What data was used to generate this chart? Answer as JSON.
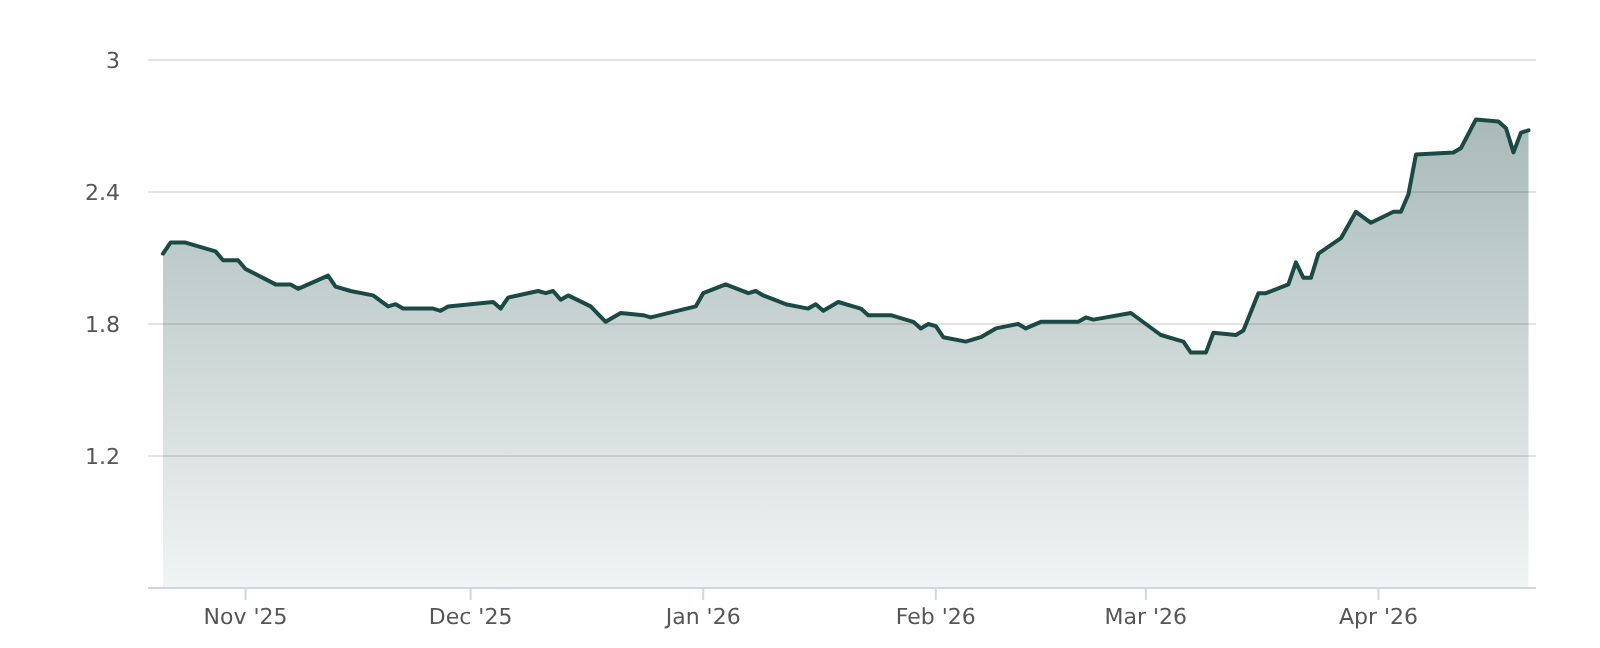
{
  "chart_data": {
    "type": "area",
    "xlim": [
      "2025-10-19",
      "2026-04-22"
    ],
    "ylim": [
      0.6,
      3
    ],
    "xticks": [
      {
        "value": "2025-11-01",
        "label": "Nov '25"
      },
      {
        "value": "2025-12-01",
        "label": "Dec '25"
      },
      {
        "value": "2026-01-01",
        "label": "Jan '26"
      },
      {
        "value": "2026-02-01",
        "label": "Feb '26"
      },
      {
        "value": "2026-03-01",
        "label": "Mar '26"
      },
      {
        "value": "2026-04-01",
        "label": "Apr '26"
      }
    ],
    "yticks": [
      1.2,
      1.8,
      2.4,
      3
    ],
    "grid": "y",
    "series": [
      {
        "color": "#1b4a45",
        "x": [
          "2025-10-21",
          "2025-10-22",
          "2025-10-24",
          "2025-10-28",
          "2025-10-29",
          "2025-10-31",
          "2025-11-01",
          "2025-11-05",
          "2025-11-07",
          "2025-11-08",
          "2025-11-12",
          "2025-11-13",
          "2025-11-15",
          "2025-11-18",
          "2025-11-20",
          "2025-11-21",
          "2025-11-22",
          "2025-11-26",
          "2025-11-27",
          "2025-11-28",
          "2025-12-04",
          "2025-12-05",
          "2025-12-06",
          "2025-12-10",
          "2025-12-11",
          "2025-12-12",
          "2025-12-13",
          "2025-12-14",
          "2025-12-17",
          "2025-12-19",
          "2025-12-21",
          "2025-12-24",
          "2025-12-25",
          "2025-12-31",
          "2026-01-01",
          "2026-01-04",
          "2026-01-07",
          "2026-01-08",
          "2026-01-09",
          "2026-01-12",
          "2026-01-15",
          "2026-01-16",
          "2026-01-17",
          "2026-01-19",
          "2026-01-22",
          "2026-01-23",
          "2026-01-26",
          "2026-01-29",
          "2026-01-30",
          "2026-01-31",
          "2026-02-01",
          "2026-02-02",
          "2026-02-05",
          "2026-02-07",
          "2026-02-09",
          "2026-02-12",
          "2026-02-13",
          "2026-02-15",
          "2026-02-20",
          "2026-02-21",
          "2026-02-22",
          "2026-02-27",
          "2026-03-03",
          "2026-03-06",
          "2026-03-07",
          "2026-03-09",
          "2026-03-10",
          "2026-03-13",
          "2026-03-14",
          "2026-03-16",
          "2026-03-17",
          "2026-03-20",
          "2026-03-21",
          "2026-03-22",
          "2026-03-23",
          "2026-03-24",
          "2026-03-27",
          "2026-03-29",
          "2026-03-31",
          "2026-04-03",
          "2026-04-04",
          "2026-04-05",
          "2026-04-06",
          "2026-04-11",
          "2026-04-12",
          "2026-04-14",
          "2026-04-17",
          "2026-04-18",
          "2026-04-19",
          "2026-04-20",
          "2026-04-21"
        ],
        "values": [
          2.12,
          2.17,
          2.17,
          2.13,
          2.09,
          2.09,
          2.05,
          1.98,
          1.98,
          1.96,
          2.02,
          1.97,
          1.95,
          1.93,
          1.88,
          1.89,
          1.87,
          1.87,
          1.86,
          1.88,
          1.9,
          1.87,
          1.92,
          1.95,
          1.94,
          1.95,
          1.91,
          1.93,
          1.88,
          1.81,
          1.85,
          1.84,
          1.83,
          1.88,
          1.94,
          1.98,
          1.94,
          1.95,
          1.93,
          1.89,
          1.87,
          1.89,
          1.86,
          1.9,
          1.87,
          1.84,
          1.84,
          1.81,
          1.78,
          1.8,
          1.79,
          1.74,
          1.72,
          1.74,
          1.78,
          1.8,
          1.78,
          1.81,
          1.81,
          1.83,
          1.82,
          1.85,
          1.75,
          1.72,
          1.67,
          1.67,
          1.76,
          1.75,
          1.77,
          1.94,
          1.94,
          1.98,
          2.08,
          2.01,
          2.01,
          2.12,
          2.19,
          2.31,
          2.26,
          2.31,
          2.31,
          2.39,
          2.57,
          2.58,
          2.6,
          2.73,
          2.72,
          2.69,
          2.58,
          2.67,
          2.68
        ]
      }
    ]
  }
}
